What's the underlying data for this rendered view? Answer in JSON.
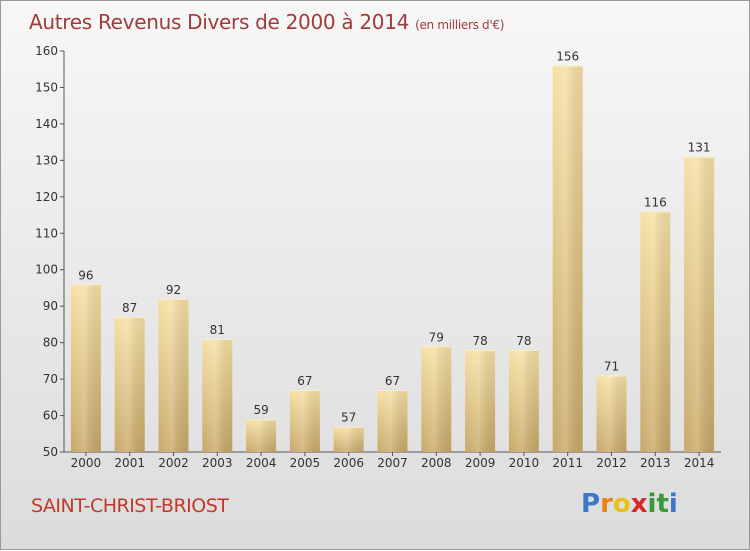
{
  "title": "Autres Revenus Divers de 2000 à 2014",
  "unit": "(en milliers d'€)",
  "commune": "SAINT-CHRIST-BRIOST",
  "logo": {
    "letters": [
      "P",
      "r",
      "o",
      "x",
      "i",
      "t",
      "i"
    ],
    "colors": [
      "#3a78c9",
      "#e8841a",
      "#e8c21a",
      "#d8282a",
      "#3a9a3a",
      "#3a9a3a",
      "#3a78c9"
    ]
  },
  "colors": {
    "bar_light": "#f6e0a4",
    "bar_dark": "#c8a868",
    "title": "#a23a3a",
    "commune": "#c0392b"
  },
  "chart_data": {
    "type": "bar",
    "title": "Autres Revenus Divers de 2000 à 2014",
    "subtitle": "(en milliers d'€)",
    "xlabel": "",
    "ylabel": "",
    "categories": [
      "2000",
      "2001",
      "2002",
      "2003",
      "2004",
      "2005",
      "2006",
      "2007",
      "2008",
      "2009",
      "2010",
      "2011",
      "2012",
      "2013",
      "2014"
    ],
    "values": [
      96,
      87,
      92,
      81,
      59,
      67,
      57,
      67,
      79,
      78,
      78,
      156,
      71,
      116,
      131
    ],
    "ylim": [
      50,
      160
    ],
    "yticks": [
      50,
      60,
      70,
      80,
      90,
      100,
      110,
      120,
      130,
      140,
      150,
      160
    ],
    "grid": false,
    "legend": "none"
  }
}
